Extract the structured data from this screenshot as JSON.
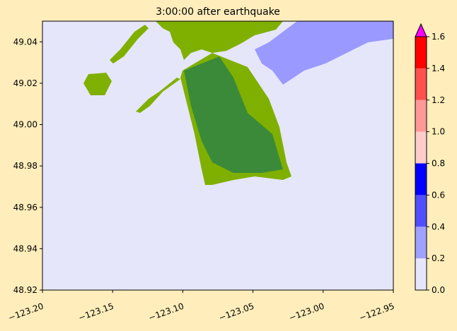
{
  "chart_data": {
    "type": "map",
    "title": "3:00:00 after earthquake",
    "background": "#e6e6fa",
    "xlim": [
      -123.2,
      -122.95
    ],
    "xticks": [
      {
        "value": -123.2,
        "label": "−123.20"
      },
      {
        "value": -123.15,
        "label": "−123.15"
      },
      {
        "value": -123.1,
        "label": "−123.10"
      },
      {
        "value": -123.05,
        "label": "−123.05"
      },
      {
        "value": -123.0,
        "label": "−123.00"
      },
      {
        "value": -122.95,
        "label": "−122.95"
      }
    ],
    "ylim": [
      48.92,
      49.05
    ],
    "yticks": [
      48.92,
      48.94,
      48.96,
      48.98,
      {
        "value": 49.0,
        "label": "49.00"
      },
      49.02,
      49.04
    ],
    "colorbar": {
      "clim": [
        0,
        1.6
      ],
      "ticks": [
        {
          "value": 0,
          "label": "0.0"
        },
        0.2,
        0.4,
        0.6,
        0.8,
        {
          "value": 1,
          "label": "1.0"
        },
        1.2,
        1.4,
        1.6
      ],
      "colors": [
        "#e6e6ff",
        "#a0a0ff",
        "#5050ff",
        "#0000ff",
        "#ffcccc",
        "#ff9999",
        "#ff5050",
        "#ff0000"
      ],
      "extend_color": "#ff00ff"
    }
  }
}
